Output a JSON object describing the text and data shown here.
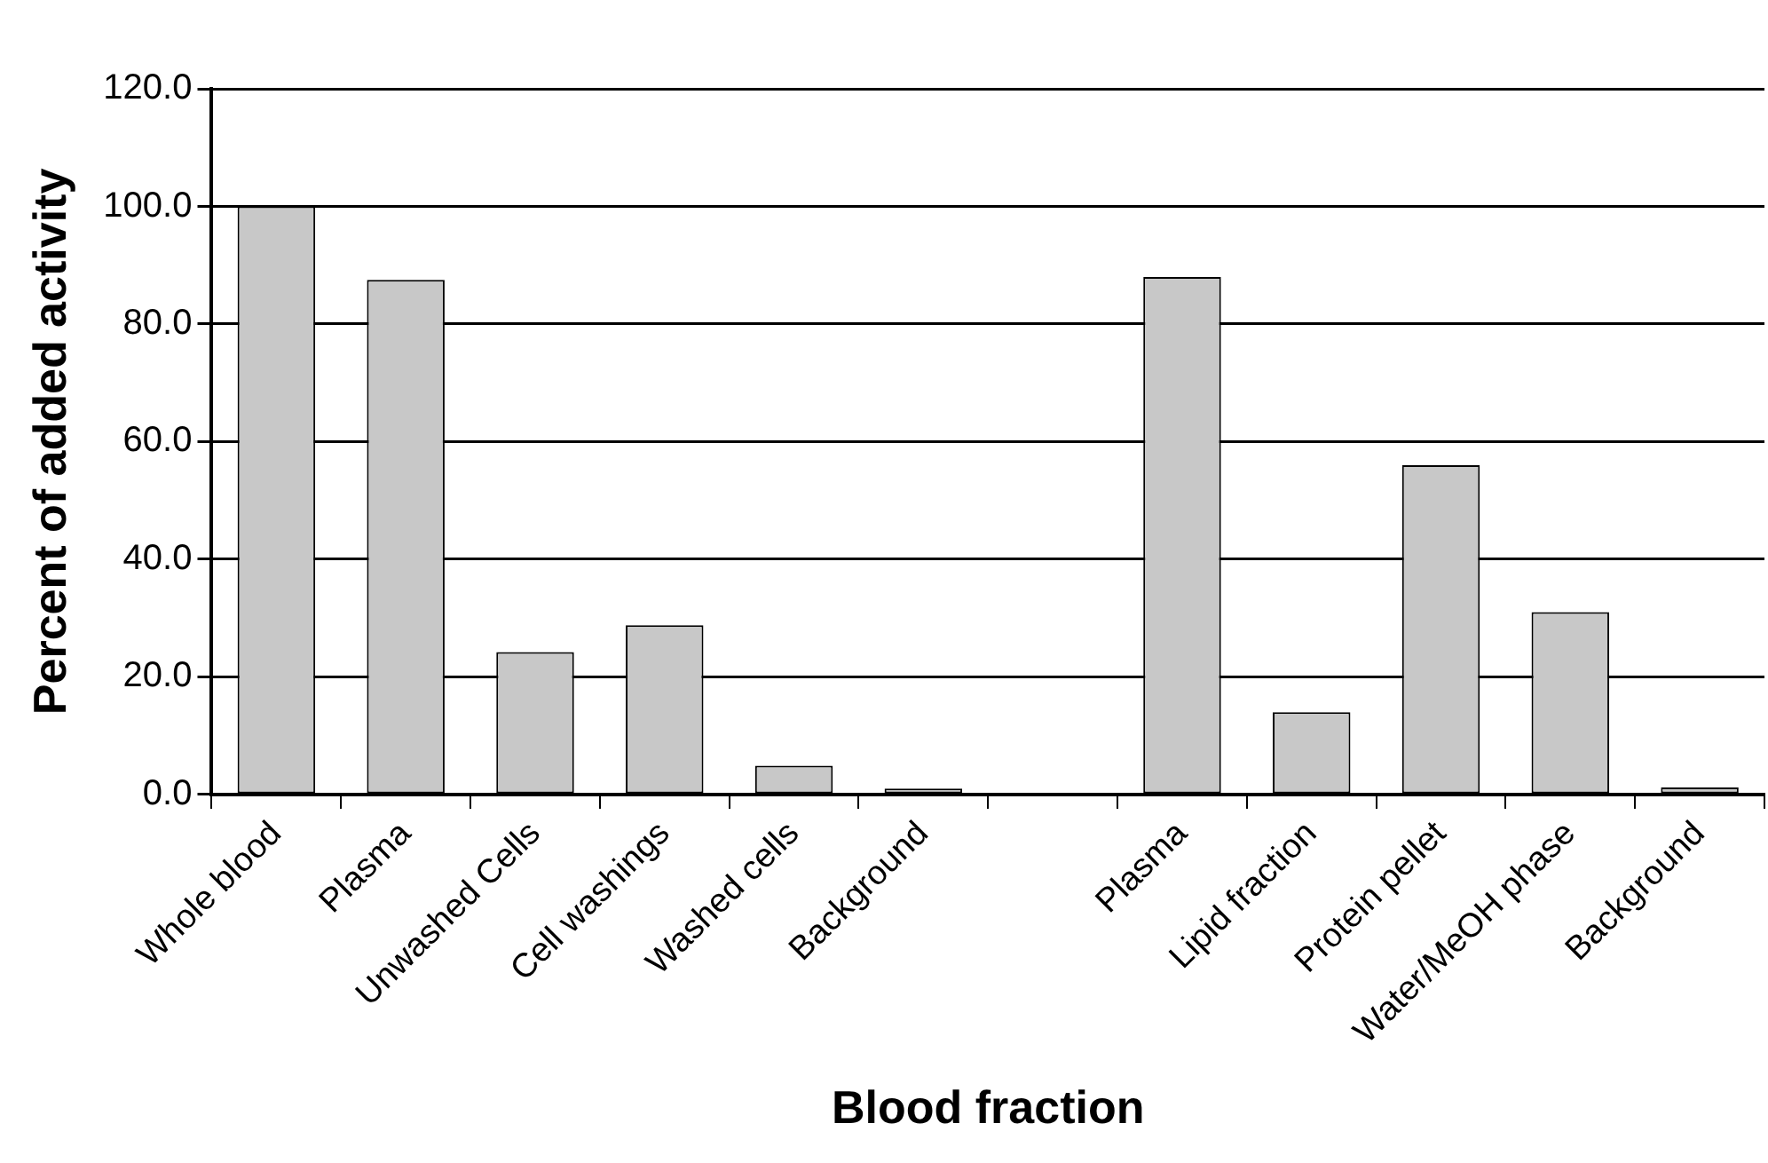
{
  "chart_data": {
    "type": "bar",
    "xlabel": "Blood fraction",
    "ylabel": "Percent of added activity",
    "categories": [
      "Whole blood",
      "Plasma",
      "Unwashed Cells",
      "Cell washings",
      "Washed cells",
      "Background",
      null,
      "Plasma",
      "Lipid fraction",
      "Protein pellet",
      "Water/MeOH phase",
      "Background"
    ],
    "values": [
      100.0,
      87.5,
      24.2,
      28.8,
      4.9,
      1.0,
      null,
      88.0,
      14.0,
      56.0,
      31.0,
      1.2
    ],
    "color": "#c8c8c8",
    "ylim": [
      0,
      120
    ],
    "yticks": [
      {
        "value": 0,
        "label": "0.0"
      },
      {
        "value": 20,
        "label": "20.0"
      },
      {
        "value": 40,
        "label": "40.0"
      },
      {
        "value": 60,
        "label": "60.0"
      },
      {
        "value": 80,
        "label": "80.0"
      },
      {
        "value": 100,
        "label": "100.0"
      },
      {
        "value": 120,
        "label": "120.0"
      }
    ],
    "grid": "y",
    "legend": false
  }
}
